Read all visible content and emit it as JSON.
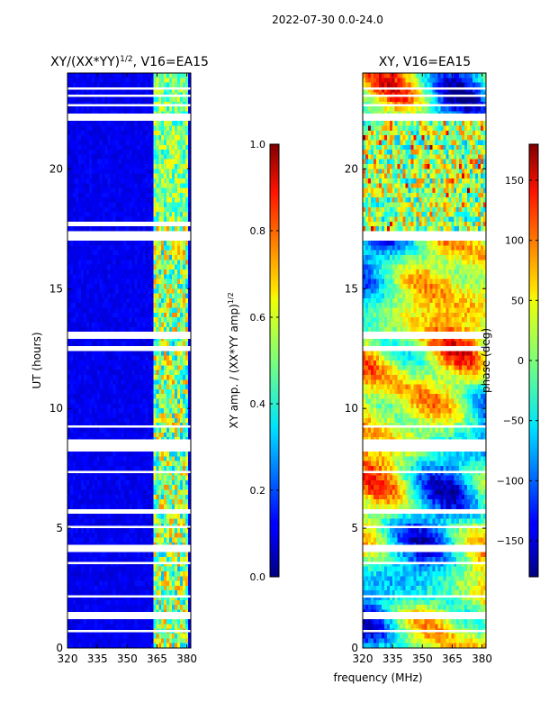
{
  "figure_title": "2022-07-30 0.0-24.0",
  "chart_data": [
    {
      "type": "heatmap",
      "title_main": "XY/(XX*YY)",
      "title_exp": "1/2",
      "title_suffix": ", V16=EA15",
      "xlabel": "",
      "ylabel": "UT (hours)",
      "xlim": [
        320,
        382
      ],
      "ylim": [
        0,
        24
      ],
      "xticks": [
        320,
        335,
        350,
        365,
        380
      ],
      "yticks": [
        0,
        5,
        10,
        15,
        20
      ],
      "colormap": "jet",
      "colorbar": {
        "label": "XY amp. / (XX*YY amp)",
        "label_exp": "1/2",
        "range": [
          0,
          1
        ],
        "ticks": [
          "0.0",
          "0.2",
          "0.4",
          "0.6",
          "0.8",
          "1.0"
        ]
      },
      "features": {
        "background_value": 0.08,
        "bright_band_MHz": [
          363,
          380
        ],
        "bright_band_value": 0.55,
        "no_data_hours": [
          [
            0.65,
            0.75
          ],
          [
            1.2,
            1.5
          ],
          [
            2.1,
            2.2
          ],
          [
            3.5,
            3.6
          ],
          [
            4.0,
            4.3
          ],
          [
            5.0,
            5.1
          ],
          [
            5.6,
            5.8
          ],
          [
            7.3,
            7.4
          ],
          [
            8.2,
            8.7
          ],
          [
            9.2,
            9.3
          ],
          [
            12.4,
            12.6
          ],
          [
            12.9,
            13.2
          ],
          [
            17.0,
            17.4
          ],
          [
            17.6,
            17.8
          ],
          [
            22.0,
            22.3
          ],
          [
            22.6,
            22.7
          ],
          [
            23.0,
            23.1
          ],
          [
            23.3,
            23.4
          ]
        ]
      }
    },
    {
      "type": "heatmap",
      "title_main": "XY, V16=EA15",
      "xlabel": "frequency (MHz)",
      "ylabel": "",
      "xlim": [
        320,
        382
      ],
      "ylim": [
        0,
        24
      ],
      "xticks": [
        320,
        335,
        350,
        365,
        380
      ],
      "yticks": [
        0,
        5,
        10,
        15,
        20
      ],
      "colormap": "jet",
      "colorbar": {
        "label": "phase (deg)",
        "range": [
          -180,
          180
        ],
        "ticks": [
          "150",
          "100",
          "50",
          "0",
          "−50",
          "−100",
          "−150"
        ]
      },
      "features": {
        "noisy_hours": [
          17.5,
          22.0
        ],
        "no_data_hours": [
          [
            0.65,
            0.75
          ],
          [
            1.2,
            1.5
          ],
          [
            2.1,
            2.2
          ],
          [
            3.5,
            3.6
          ],
          [
            4.0,
            4.3
          ],
          [
            5.0,
            5.1
          ],
          [
            5.6,
            5.8
          ],
          [
            7.3,
            7.4
          ],
          [
            8.2,
            8.7
          ],
          [
            9.2,
            9.3
          ],
          [
            12.4,
            12.6
          ],
          [
            12.9,
            13.2
          ],
          [
            17.0,
            17.4
          ],
          [
            22.0,
            22.3
          ],
          [
            22.6,
            22.7
          ],
          [
            23.0,
            23.1
          ],
          [
            23.3,
            23.4
          ]
        ]
      }
    }
  ]
}
